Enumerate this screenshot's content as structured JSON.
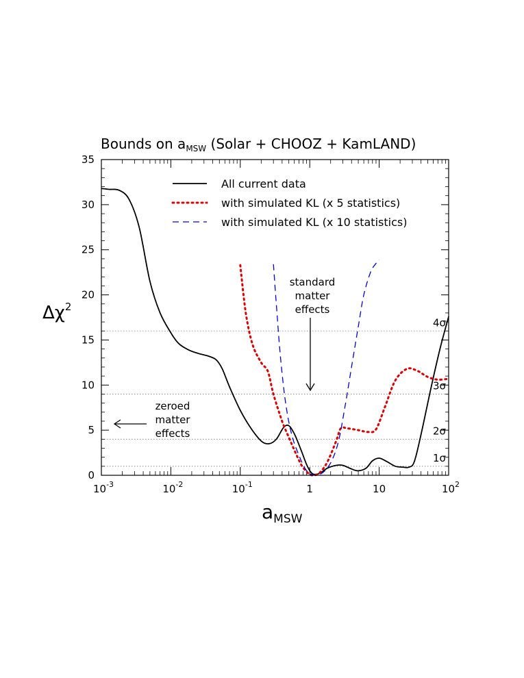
{
  "chart_data": {
    "type": "line",
    "title": "Bounds on a_MSW (Solar + CHOOZ + KamLAND)",
    "title_parts": {
      "pre": "Bounds on a",
      "sub": "MSW",
      "post": " (Solar + CHOOZ + KamLAND)"
    },
    "xlabel": {
      "main": "a",
      "sub": "MSW"
    },
    "ylabel": {
      "main": "Δχ",
      "sup": "2"
    },
    "x_scale": "log",
    "xlim": [
      0.001,
      100
    ],
    "ylim": [
      0,
      35
    ],
    "x_ticks": [
      {
        "value": 0.001,
        "base": "10",
        "exp": "-3"
      },
      {
        "value": 0.01,
        "base": "10",
        "exp": "-2"
      },
      {
        "value": 0.1,
        "base": "10",
        "exp": "-1"
      },
      {
        "value": 1,
        "base": "1",
        "exp": ""
      },
      {
        "value": 10,
        "base": "10",
        "exp": ""
      },
      {
        "value": 100,
        "base": "10",
        "exp": "2"
      }
    ],
    "y_ticks": [
      0,
      5,
      10,
      15,
      20,
      25,
      30,
      35
    ],
    "grid": false,
    "reference_lines": [
      {
        "y": 1,
        "label": "1σ"
      },
      {
        "y": 4,
        "label": "2σ"
      },
      {
        "y": 9,
        "label": "3σ"
      },
      {
        "y": 16,
        "label": "4σ"
      }
    ],
    "legend_position": "top",
    "series": [
      {
        "name": "All current data",
        "color": "#000000",
        "style": "solid",
        "points": [
          [
            0.001,
            31.8
          ],
          [
            0.0013,
            31.7
          ],
          [
            0.0018,
            31.6
          ],
          [
            0.0025,
            30.6
          ],
          [
            0.0035,
            27.5
          ],
          [
            0.005,
            21.5
          ],
          [
            0.007,
            18.0
          ],
          [
            0.01,
            15.8
          ],
          [
            0.013,
            14.6
          ],
          [
            0.018,
            13.9
          ],
          [
            0.025,
            13.5
          ],
          [
            0.035,
            13.2
          ],
          [
            0.045,
            12.8
          ],
          [
            0.055,
            11.8
          ],
          [
            0.07,
            9.8
          ],
          [
            0.1,
            7.2
          ],
          [
            0.14,
            5.3
          ],
          [
            0.2,
            3.8
          ],
          [
            0.26,
            3.5
          ],
          [
            0.33,
            4.0
          ],
          [
            0.42,
            5.3
          ],
          [
            0.5,
            5.5
          ],
          [
            0.6,
            4.6
          ],
          [
            0.75,
            2.8
          ],
          [
            0.9,
            1.2
          ],
          [
            1.05,
            0.3
          ],
          [
            1.2,
            0.1
          ],
          [
            1.45,
            0.3
          ],
          [
            1.8,
            0.8
          ],
          [
            2.4,
            1.1
          ],
          [
            3.0,
            1.1
          ],
          [
            4.0,
            0.7
          ],
          [
            5.0,
            0.5
          ],
          [
            6.5,
            0.8
          ],
          [
            8.0,
            1.6
          ],
          [
            10.0,
            1.9
          ],
          [
            13.0,
            1.5
          ],
          [
            17.0,
            1.0
          ],
          [
            22.0,
            0.9
          ],
          [
            27.0,
            0.9
          ],
          [
            32.0,
            1.5
          ],
          [
            40.0,
            4.5
          ],
          [
            55.0,
            9.5
          ],
          [
            75.0,
            14.0
          ],
          [
            100.0,
            17.6
          ]
        ]
      },
      {
        "name": "with simulated KL (x 5 statistics)",
        "color": "#e00000",
        "style": "dotted",
        "points": [
          [
            0.1,
            23.3
          ],
          [
            0.12,
            18.0
          ],
          [
            0.15,
            14.5
          ],
          [
            0.2,
            12.5
          ],
          [
            0.25,
            11.5
          ],
          [
            0.3,
            9.0
          ],
          [
            0.4,
            6.0
          ],
          [
            0.5,
            4.2
          ],
          [
            0.6,
            2.8
          ],
          [
            0.75,
            1.2
          ],
          [
            0.9,
            0.4
          ],
          [
            1.0,
            0.1
          ],
          [
            1.15,
            0.0
          ],
          [
            1.4,
            0.3
          ],
          [
            1.8,
            1.5
          ],
          [
            2.4,
            3.8
          ],
          [
            2.8,
            5.2
          ],
          [
            3.5,
            5.2
          ],
          [
            5.0,
            5.0
          ],
          [
            7.0,
            4.8
          ],
          [
            9.0,
            5.1
          ],
          [
            12.0,
            7.5
          ],
          [
            17.0,
            10.5
          ],
          [
            25.0,
            11.8
          ],
          [
            35.0,
            11.6
          ],
          [
            50.0,
            10.9
          ],
          [
            70.0,
            10.6
          ],
          [
            100.0,
            10.7
          ]
        ]
      },
      {
        "name": "with simulated KL (x 10 statistics)",
        "color": "#0000dd",
        "style": "dashed",
        "points": [
          [
            0.3,
            23.4
          ],
          [
            0.33,
            19.0
          ],
          [
            0.38,
            13.0
          ],
          [
            0.45,
            8.0
          ],
          [
            0.55,
            4.5
          ],
          [
            0.7,
            2.2
          ],
          [
            0.85,
            0.8
          ],
          [
            1.0,
            0.2
          ],
          [
            1.2,
            0.0
          ],
          [
            1.4,
            0.1
          ],
          [
            1.7,
            0.6
          ],
          [
            2.1,
            1.7
          ],
          [
            2.6,
            3.8
          ],
          [
            3.2,
            7.5
          ],
          [
            4.0,
            12.0
          ],
          [
            5.0,
            16.5
          ],
          [
            6.0,
            20.0
          ],
          [
            7.5,
            22.5
          ],
          [
            9.0,
            23.5
          ],
          [
            10.0,
            23.9
          ]
        ]
      }
    ],
    "annotations": {
      "zeroed": [
        "zeroed",
        "matter",
        "effects"
      ],
      "standard": [
        "standard",
        "matter",
        "effects"
      ]
    }
  }
}
